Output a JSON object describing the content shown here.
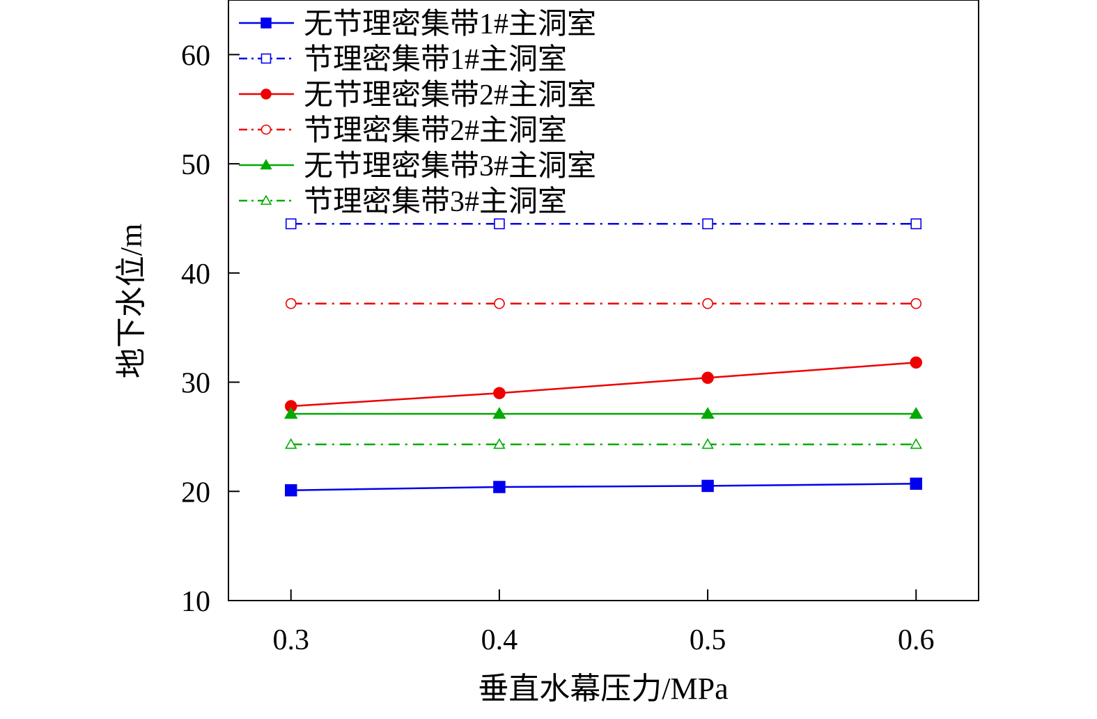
{
  "chart_data": {
    "type": "line",
    "title": "",
    "xlabel": "垂直水幕压力/MPa",
    "ylabel": "地下水位/m",
    "x": [
      0.3,
      0.4,
      0.5,
      0.6
    ],
    "x_tick_labels": [
      "0.3",
      "0.4",
      "0.5",
      "0.6"
    ],
    "xlim": [
      0.27,
      0.63
    ],
    "ylim": [
      10,
      65
    ],
    "y_ticks": [
      10,
      20,
      30,
      40,
      50,
      60
    ],
    "y_tick_labels": [
      "10",
      "20",
      "30",
      "40",
      "50",
      "60"
    ],
    "grid": false,
    "legend_position": "top-left",
    "series": [
      {
        "name": "无节理密集带1#主洞室",
        "values": [
          20.1,
          20.4,
          20.5,
          20.7
        ],
        "color": "#0000ee",
        "marker": "square",
        "filled": true,
        "line": "solid"
      },
      {
        "name": "节理密集带1#主洞室",
        "values": [
          44.5,
          44.5,
          44.5,
          44.5
        ],
        "color": "#0000ee",
        "marker": "square",
        "filled": false,
        "line": "dashdot"
      },
      {
        "name": "无节理密集带2#主洞室",
        "values": [
          27.8,
          29.0,
          30.4,
          31.8
        ],
        "color": "#ee0000",
        "marker": "circle",
        "filled": true,
        "line": "solid"
      },
      {
        "name": "节理密集带2#主洞室",
        "values": [
          37.2,
          37.2,
          37.2,
          37.2
        ],
        "color": "#ee0000",
        "marker": "circle",
        "filled": false,
        "line": "dashdot"
      },
      {
        "name": "无节理密集带3#主洞室",
        "values": [
          27.1,
          27.1,
          27.1,
          27.1
        ],
        "color": "#00aa00",
        "marker": "triangle",
        "filled": true,
        "line": "solid"
      },
      {
        "name": "节理密集带3#主洞室",
        "values": [
          24.3,
          24.3,
          24.3,
          24.3
        ],
        "color": "#00aa00",
        "marker": "triangle",
        "filled": false,
        "line": "dashdot"
      }
    ]
  }
}
